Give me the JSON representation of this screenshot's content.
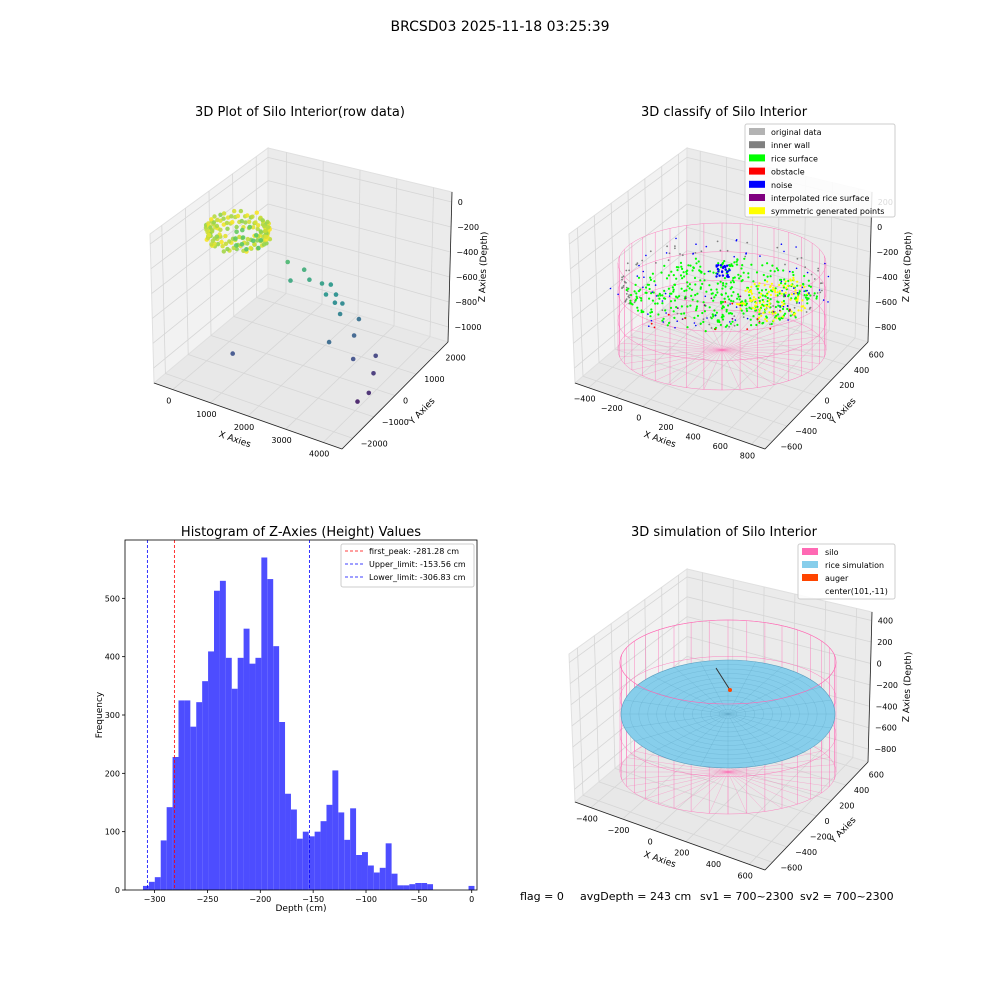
{
  "figure": {
    "suptitle": "BRCSD03 2025-11-18 03:25:39",
    "footer": {
      "flag": "flag = 0",
      "avg_depth": "avgDepth = 243 cm",
      "sv1": "sv1 = 700~2300",
      "sv2": "sv2 = 700~2300"
    }
  },
  "chart_data": [
    {
      "type": "scatter",
      "title": "3D Plot of Silo Interior(row data)",
      "xlabel": "X Axies",
      "ylabel": "Y Axies",
      "zlabel": "Z Axies (Depth)",
      "x_ticks": [
        "0",
        "1000",
        "2000",
        "3000",
        "4000"
      ],
      "y_ticks": [
        "−2000",
        "−1000",
        "0",
        "1000",
        "2000"
      ],
      "z_ticks": [
        "0",
        "−200",
        "−400",
        "−600",
        "−800",
        "−1000"
      ],
      "colormap": "viridis",
      "points": [
        {
          "x": 300,
          "y": 0,
          "z": -240
        },
        {
          "x": 150,
          "y": 200,
          "z": -230
        },
        {
          "x": 400,
          "y": -200,
          "z": -250
        },
        {
          "x": 250,
          "y": 350,
          "z": -220
        },
        {
          "x": 500,
          "y": 100,
          "z": -260
        },
        {
          "x": 350,
          "y": -350,
          "z": -240
        },
        {
          "x": 600,
          "y": 250,
          "z": -270
        },
        {
          "x": 200,
          "y": -150,
          "z": -235
        },
        {
          "x": 450,
          "y": 300,
          "z": -255
        },
        {
          "x": 550,
          "y": -250,
          "z": -265
        },
        {
          "x": 100,
          "y": 50,
          "z": -225
        },
        {
          "x": 700,
          "y": 0,
          "z": -280
        },
        {
          "x": 1400,
          "y": 100,
          "z": -330
        },
        {
          "x": 1700,
          "y": 300,
          "z": -390
        },
        {
          "x": 1900,
          "y": 200,
          "z": -430
        },
        {
          "x": 2100,
          "y": 400,
          "z": -470
        },
        {
          "x": 2300,
          "y": 250,
          "z": -510
        },
        {
          "x": 2400,
          "y": 500,
          "z": -540
        },
        {
          "x": 2500,
          "y": 300,
          "z": -560
        },
        {
          "x": 2200,
          "y": 600,
          "z": -500
        },
        {
          "x": 2600,
          "y": 450,
          "z": -580
        },
        {
          "x": 1600,
          "y": -100,
          "z": -420
        },
        {
          "x": 2700,
          "y": 200,
          "z": -610
        },
        {
          "x": 2900,
          "y": 650,
          "z": -700
        },
        {
          "x": 3000,
          "y": 300,
          "z": -760
        },
        {
          "x": 3300,
          "y": -200,
          "z": -830
        },
        {
          "x": 3500,
          "y": 400,
          "z": -880
        },
        {
          "x": 3700,
          "y": 0,
          "z": -930
        },
        {
          "x": 3900,
          "y": -500,
          "z": -980
        },
        {
          "x": 3800,
          "y": -800,
          "z": -1010
        },
        {
          "x": 1000,
          "y": -1500,
          "z": -820
        },
        {
          "x": 2800,
          "y": -400,
          "z": -720
        }
      ]
    },
    {
      "type": "scatter",
      "title": "3D classify of Silo Interior",
      "xlabel": "X Axies",
      "ylabel": "Y Axies",
      "zlabel": "Z Axies (Depth)",
      "x_ticks": [
        "−400",
        "−200",
        "0",
        "200",
        "400",
        "600",
        "800"
      ],
      "y_ticks": [
        "−600",
        "−400",
        "−200",
        "0",
        "200",
        "400",
        "600"
      ],
      "z_ticks": [
        "200",
        "0",
        "−200",
        "−400",
        "−600",
        "−800"
      ],
      "legend_position": "top-right",
      "legend": [
        {
          "label": "original data",
          "color": "#b3b3b3"
        },
        {
          "label": "inner wall",
          "color": "#808080"
        },
        {
          "label": "rice surface",
          "color": "#00ff00"
        },
        {
          "label": "obstacle",
          "color": "#ff0000"
        },
        {
          "label": "noise",
          "color": "#0000ff"
        },
        {
          "label": "interpolated rice surface",
          "color": "#800080"
        },
        {
          "label": "symmetric generated points",
          "color": "#ffff00"
        }
      ],
      "silo_wire_color": "#ff69b4"
    },
    {
      "type": "bar",
      "title": "Histogram of Z-Axies (Height) Values",
      "xlabel": "Depth (cm)",
      "ylabel": "Frequency",
      "xlim": [
        -328,
        5
      ],
      "ylim": [
        0,
        600
      ],
      "x_ticks": [
        -300,
        -250,
        -200,
        -150,
        -100,
        -50,
        0
      ],
      "x_tick_labels": [
        "−300",
        "−250",
        "−200",
        "−150",
        "−100",
        "−50",
        "0"
      ],
      "y_ticks": [
        0,
        100,
        200,
        300,
        400,
        500
      ],
      "bar_color": "#4d4dff",
      "bin_width": 5.6,
      "bins": [
        {
          "x": -311.0,
          "count": 7
        },
        {
          "x": -305.4,
          "count": 14
        },
        {
          "x": -299.8,
          "count": 22
        },
        {
          "x": -294.2,
          "count": 85
        },
        {
          "x": -288.6,
          "count": 142
        },
        {
          "x": -283.0,
          "count": 228
        },
        {
          "x": -277.4,
          "count": 325
        },
        {
          "x": -271.8,
          "count": 325
        },
        {
          "x": -266.2,
          "count": 280
        },
        {
          "x": -260.6,
          "count": 322
        },
        {
          "x": -255.0,
          "count": 358
        },
        {
          "x": -249.4,
          "count": 409
        },
        {
          "x": -243.8,
          "count": 513
        },
        {
          "x": -238.2,
          "count": 530
        },
        {
          "x": -232.6,
          "count": 398
        },
        {
          "x": -227.0,
          "count": 345
        },
        {
          "x": -221.4,
          "count": 398
        },
        {
          "x": -215.8,
          "count": 448
        },
        {
          "x": -210.2,
          "count": 388
        },
        {
          "x": -204.6,
          "count": 398
        },
        {
          "x": -199.0,
          "count": 570
        },
        {
          "x": -193.4,
          "count": 533
        },
        {
          "x": -187.8,
          "count": 418
        },
        {
          "x": -182.2,
          "count": 288
        },
        {
          "x": -176.6,
          "count": 165
        },
        {
          "x": -171.0,
          "count": 138
        },
        {
          "x": -165.4,
          "count": 88
        },
        {
          "x": -159.8,
          "count": 100
        },
        {
          "x": -154.2,
          "count": 92
        },
        {
          "x": -148.6,
          "count": 100
        },
        {
          "x": -143.0,
          "count": 118
        },
        {
          "x": -137.4,
          "count": 146
        },
        {
          "x": -131.8,
          "count": 205
        },
        {
          "x": -126.2,
          "count": 133
        },
        {
          "x": -120.6,
          "count": 86
        },
        {
          "x": -115.0,
          "count": 140
        },
        {
          "x": -109.4,
          "count": 60
        },
        {
          "x": -103.8,
          "count": 65
        },
        {
          "x": -98.2,
          "count": 42
        },
        {
          "x": -92.6,
          "count": 30
        },
        {
          "x": -87.0,
          "count": 38
        },
        {
          "x": -81.4,
          "count": 80
        },
        {
          "x": -75.8,
          "count": 28
        },
        {
          "x": -70.2,
          "count": 8
        },
        {
          "x": -64.6,
          "count": 8
        },
        {
          "x": -59.0,
          "count": 10
        },
        {
          "x": -53.4,
          "count": 12
        },
        {
          "x": -47.8,
          "count": 12
        },
        {
          "x": -42.2,
          "count": 10
        },
        {
          "x": -36.6,
          "count": 0
        },
        {
          "x": -31.0,
          "count": 0
        },
        {
          "x": -25.4,
          "count": 0
        },
        {
          "x": -19.8,
          "count": 0
        },
        {
          "x": -14.2,
          "count": 0
        },
        {
          "x": -8.6,
          "count": 0
        },
        {
          "x": -3.0,
          "count": 7
        }
      ],
      "vlines": [
        {
          "x": -281.28,
          "color": "#ff0000",
          "label": "first_peak: -281.28 cm"
        },
        {
          "x": -153.56,
          "color": "#0000ff",
          "label": "Upper_limit: -153.56 cm"
        },
        {
          "x": -306.83,
          "color": "#0000ff",
          "label": "Lower_limit: -306.83 cm"
        }
      ],
      "legend_position": "top-right"
    },
    {
      "type": "area",
      "title": "3D simulation of Silo Interior",
      "xlabel": "X Axies",
      "ylabel": "Y Axies",
      "zlabel": "Z Axies (Depth)",
      "x_ticks": [
        "−400",
        "−200",
        "0",
        "200",
        "400",
        "600"
      ],
      "y_ticks": [
        "−600",
        "−400",
        "−200",
        "0",
        "200",
        "400",
        "600"
      ],
      "z_ticks": [
        "400",
        "200",
        "0",
        "−200",
        "−400",
        "−600",
        "−800"
      ],
      "legend_position": "top-right",
      "legend": [
        {
          "label": "silo",
          "color": "#ff69b4"
        },
        {
          "label": "rice simulation",
          "color": "#87ceeb"
        },
        {
          "label": "auger",
          "color": "#ff4500"
        },
        {
          "label": "center(101,-11)",
          "color": ""
        }
      ]
    }
  ]
}
